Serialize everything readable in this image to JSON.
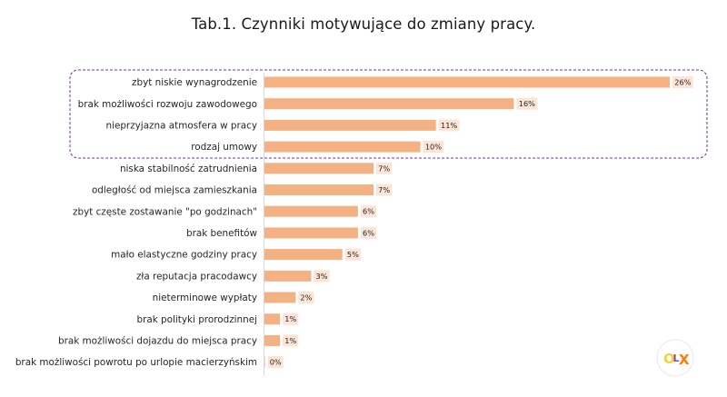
{
  "chart_data": {
    "type": "bar",
    "orientation": "horizontal",
    "title": "Tab.1. Czynniki motywujące do zmiany pracy.",
    "categories": [
      "zbyt niskie wynagrodzenie",
      "brak możliwości rozwoju zawodowego",
      "nieprzyjazna atmosfera w pracy",
      "rodzaj umowy",
      "niska stabilność zatrudnienia",
      "odległość od miejsca zamieszkania",
      "zbyt częste zostawanie \"po godzinach\"",
      "brak benefitów",
      "mało elastyczne godziny pracy",
      "zła reputacja pracodawcy",
      "nieterminowe wypłaty",
      "brak polityki prorodzinnej",
      "brak możliwości dojazdu do miejsca pracy",
      "brak możliwości powrotu po urlopie macierzyńskim"
    ],
    "values": [
      26,
      16,
      11,
      10,
      7,
      7,
      6,
      6,
      5,
      3,
      2,
      1,
      1,
      0
    ],
    "value_labels": [
      "26%",
      "16%",
      "11%",
      "10%",
      "7%",
      "7%",
      "6%",
      "6%",
      "5%",
      "3%",
      "2%",
      "1%",
      "1%",
      "0%"
    ],
    "xlim": [
      0,
      26
    ],
    "grid": false,
    "highlighted_categories": 4,
    "colors": {
      "bar": "#f4b183",
      "label_bg": "#fce4d6",
      "highlight_border": "#7030a0"
    }
  },
  "logo": {
    "text": "OLX",
    "letters": [
      "O",
      "L",
      "X"
    ],
    "colors": {
      "O": "#ffce32",
      "L": "#8e44ad",
      "X": "#ff7a00"
    }
  }
}
